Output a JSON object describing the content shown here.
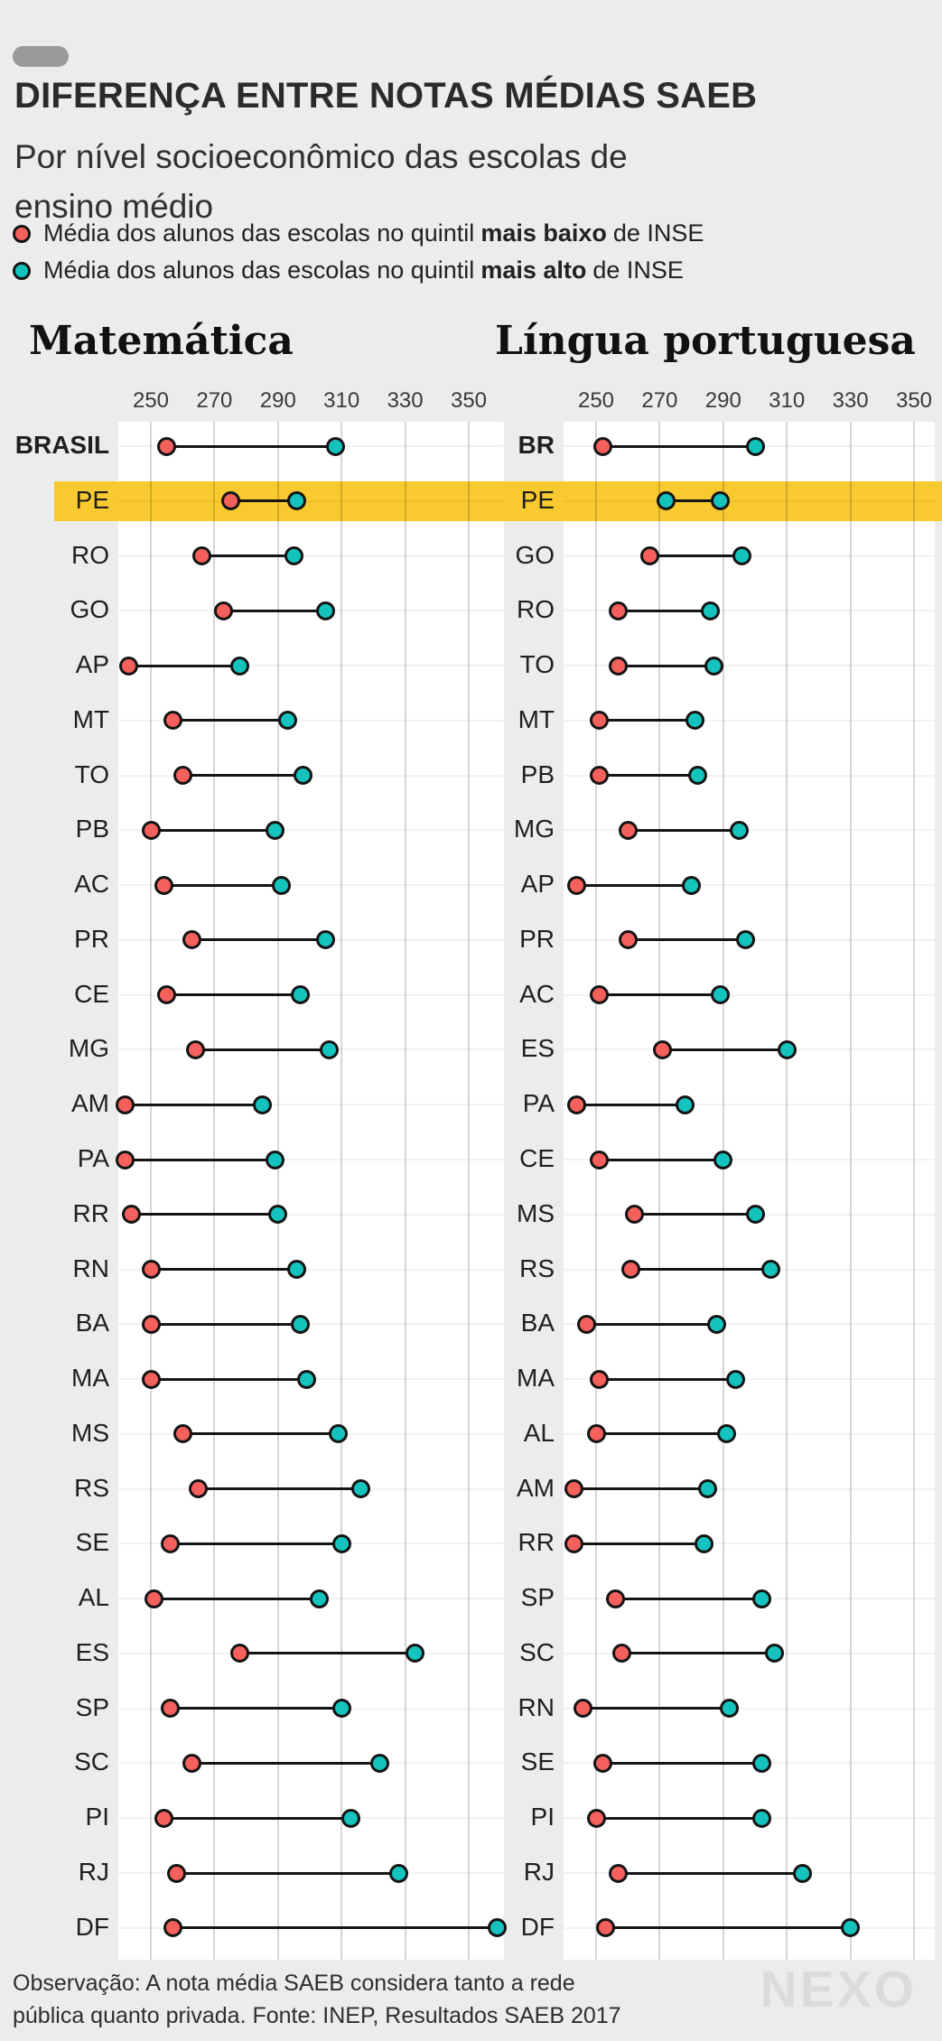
{
  "theme": {
    "background": "#ececec",
    "plot_background": "#ffffff",
    "red": "#f4605c",
    "teal": "#14c3bd",
    "highlight_yellow": "#f9ca30",
    "line_black": "#141414"
  },
  "header": {
    "title": "DIFERENÇA ENTRE NOTAS MÉDIAS SAEB",
    "subtitle_line1": "Por nível socioeconômico das escolas de",
    "subtitle_line2": "ensino médio"
  },
  "legend": [
    {
      "color": "red",
      "prefix": "Média dos alunos das escolas no quintil",
      "bold": "mais baixo",
      "suffix": "de INSE"
    },
    {
      "color": "teal",
      "prefix": "Média dos alunos das escolas no quintil",
      "bold": "mais alto",
      "suffix": "de INSE"
    }
  ],
  "chart_data": [
    {
      "type": "dumbbell",
      "title": "Matemática",
      "x_ticks": [
        250,
        270,
        290,
        310,
        330,
        350
      ],
      "x_range": [
        240,
        361
      ],
      "series": [
        {
          "name": "quintil mais baixo de INSE",
          "color": "red"
        },
        {
          "name": "quintil mais alto de INSE",
          "color": "teal"
        }
      ],
      "rows": [
        {
          "label": "BRASIL",
          "low": 255,
          "high": 308,
          "bold": true
        },
        {
          "label": "PE",
          "low": 275,
          "high": 296,
          "highlight": true
        },
        {
          "label": "RO",
          "low": 266,
          "high": 295
        },
        {
          "label": "GO",
          "low": 273,
          "high": 305
        },
        {
          "label": "AP",
          "low": 243,
          "high": 278
        },
        {
          "label": "MT",
          "low": 257,
          "high": 293
        },
        {
          "label": "TO",
          "low": 260,
          "high": 298
        },
        {
          "label": "PB",
          "low": 250,
          "high": 289
        },
        {
          "label": "AC",
          "low": 254,
          "high": 291
        },
        {
          "label": "PR",
          "low": 263,
          "high": 305
        },
        {
          "label": "CE",
          "low": 255,
          "high": 297
        },
        {
          "label": "MG",
          "low": 264,
          "high": 306
        },
        {
          "label": "AM",
          "low": 242,
          "high": 285
        },
        {
          "label": "PA",
          "low": 242,
          "high": 289
        },
        {
          "label": "RR",
          "low": 244,
          "high": 290
        },
        {
          "label": "RN",
          "low": 250,
          "high": 296
        },
        {
          "label": "BA",
          "low": 250,
          "high": 297
        },
        {
          "label": "MA",
          "low": 250,
          "high": 299
        },
        {
          "label": "MS",
          "low": 260,
          "high": 309
        },
        {
          "label": "RS",
          "low": 265,
          "high": 316
        },
        {
          "label": "SE",
          "low": 256,
          "high": 310
        },
        {
          "label": "AL",
          "low": 251,
          "high": 303
        },
        {
          "label": "ES",
          "low": 278,
          "high": 333
        },
        {
          "label": "SP",
          "low": 256,
          "high": 310
        },
        {
          "label": "SC",
          "low": 263,
          "high": 322
        },
        {
          "label": "PI",
          "low": 254,
          "high": 313
        },
        {
          "label": "RJ",
          "low": 258,
          "high": 328
        },
        {
          "label": "DF",
          "low": 257,
          "high": 359
        }
      ]
    },
    {
      "type": "dumbbell",
      "title": "Língua portuguesa",
      "x_ticks": [
        250,
        270,
        290,
        310,
        330,
        350
      ],
      "x_range": [
        240,
        357
      ],
      "series": [
        {
          "name": "quintil mais baixo de INSE",
          "color": "red"
        },
        {
          "name": "quintil mais alto de INSE",
          "color": "teal"
        }
      ],
      "rows": [
        {
          "label": "BR",
          "low": 252,
          "high": 300,
          "bold": true
        },
        {
          "label": "PE",
          "low": 272,
          "high": 289,
          "highlight": true,
          "low_color": "teal"
        },
        {
          "label": "GO",
          "low": 267,
          "high": 296
        },
        {
          "label": "RO",
          "low": 257,
          "high": 286
        },
        {
          "label": "TO",
          "low": 257,
          "high": 287
        },
        {
          "label": "MT",
          "low": 251,
          "high": 281
        },
        {
          "label": "PB",
          "low": 251,
          "high": 282
        },
        {
          "label": "MG",
          "low": 260,
          "high": 295
        },
        {
          "label": "AP",
          "low": 244,
          "high": 280
        },
        {
          "label": "PR",
          "low": 260,
          "high": 297
        },
        {
          "label": "AC",
          "low": 251,
          "high": 289
        },
        {
          "label": "ES",
          "low": 271,
          "high": 310
        },
        {
          "label": "PA",
          "low": 244,
          "high": 278
        },
        {
          "label": "CE",
          "low": 251,
          "high": 290
        },
        {
          "label": "MS",
          "low": 262,
          "high": 300
        },
        {
          "label": "RS",
          "low": 261,
          "high": 305
        },
        {
          "label": "BA",
          "low": 247,
          "high": 288
        },
        {
          "label": "MA",
          "low": 251,
          "high": 294
        },
        {
          "label": "AL",
          "low": 250,
          "high": 291
        },
        {
          "label": "AM",
          "low": 243,
          "high": 285
        },
        {
          "label": "RR",
          "low": 243,
          "high": 284
        },
        {
          "label": "SP",
          "low": 256,
          "high": 302
        },
        {
          "label": "SC",
          "low": 258,
          "high": 306
        },
        {
          "label": "RN",
          "low": 246,
          "high": 292
        },
        {
          "label": "SE",
          "low": 252,
          "high": 302
        },
        {
          "label": "PI",
          "low": 250,
          "high": 302
        },
        {
          "label": "RJ",
          "low": 257,
          "high": 315
        },
        {
          "label": "DF",
          "low": 253,
          "high": 330
        }
      ]
    }
  ],
  "footer": {
    "note_line1": "Observação: A nota média SAEB considera tanto a rede",
    "note_line2": "pública quanto privada. Fonte: INEP, Resultados SAEB 2017",
    "logo": "NEXO"
  }
}
